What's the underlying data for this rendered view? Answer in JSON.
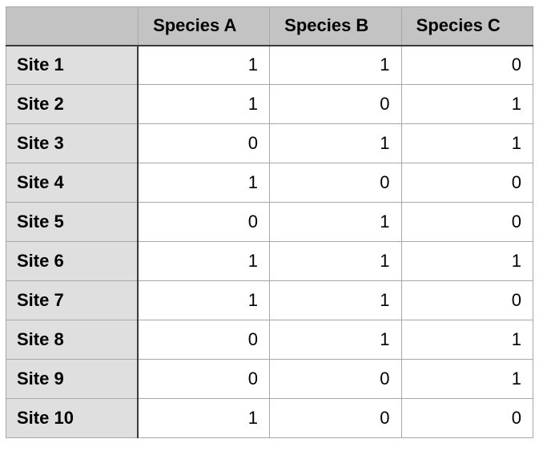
{
  "chart_data": {
    "type": "table",
    "corner_header": "",
    "columns": [
      "Species A",
      "Species B",
      "Species C"
    ],
    "row_labels": [
      "Site 1",
      "Site 2",
      "Site 3",
      "Site 4",
      "Site 5",
      "Site 6",
      "Site 7",
      "Site 8",
      "Site 9",
      "Site 10"
    ],
    "matrix": [
      [
        1,
        1,
        0
      ],
      [
        1,
        0,
        1
      ],
      [
        0,
        1,
        1
      ],
      [
        1,
        0,
        0
      ],
      [
        0,
        1,
        0
      ],
      [
        1,
        1,
        1
      ],
      [
        1,
        1,
        0
      ],
      [
        0,
        1,
        1
      ],
      [
        0,
        0,
        1
      ],
      [
        1,
        0,
        0
      ]
    ]
  },
  "colors": {
    "page_background": "#ffffff",
    "header_background": "#c2c3c2",
    "row_label_background": "#dfdfdf",
    "data_cell_background": "#ffffff",
    "border_light": "#a7a7a7",
    "border_dark": "#3a3a3a",
    "text": "#000000"
  }
}
